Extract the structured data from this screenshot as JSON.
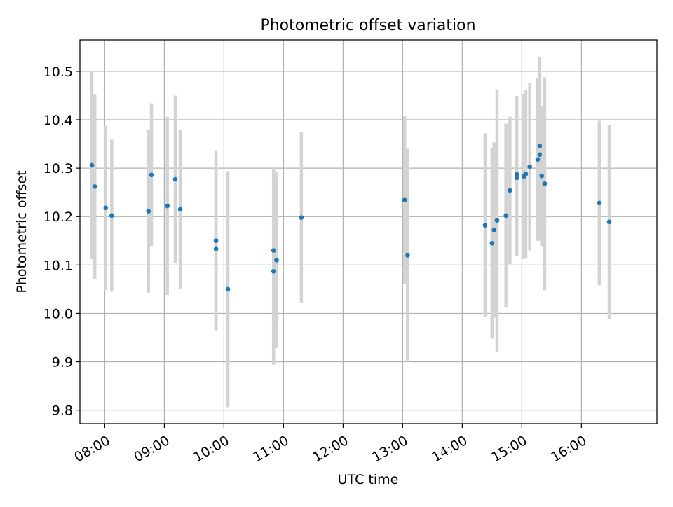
{
  "chart_data": {
    "type": "scatter",
    "title": "Photometric offset variation",
    "xlabel": "UTC time",
    "ylabel": "Photometric offset",
    "x_unit": "UTC",
    "xlim": [
      "07:35",
      "17:16"
    ],
    "ylim": [
      9.772,
      10.565
    ],
    "x_ticks": [
      "08:00",
      "09:00",
      "10:00",
      "11:00",
      "12:00",
      "13:00",
      "14:00",
      "15:00",
      "16:00"
    ],
    "y_ticks": [
      9.8,
      9.9,
      10.0,
      10.1,
      10.2,
      10.3,
      10.4,
      10.5
    ],
    "y_tick_labels": [
      "9.8",
      "9.9",
      "10.0",
      "10.1",
      "10.2",
      "10.3",
      "10.4",
      "10.5"
    ],
    "grid": true,
    "colors": {
      "point": "#1f77b4",
      "errorbar": "#d3d3d3",
      "grid": "#b0b0b0"
    },
    "series": [
      {
        "points": [
          {
            "x": "07:47",
            "y": 10.306,
            "err": 0.194
          },
          {
            "x": "07:50",
            "y": 10.262,
            "err": 0.191
          },
          {
            "x": "08:01",
            "y": 10.218,
            "err": 0.17
          },
          {
            "x": "08:07",
            "y": 10.202,
            "err": 0.157
          },
          {
            "x": "08:44",
            "y": 10.211,
            "err": 0.168
          },
          {
            "x": "08:47",
            "y": 10.286,
            "err": 0.148
          },
          {
            "x": "09:03",
            "y": 10.222,
            "err": 0.184
          },
          {
            "x": "09:11",
            "y": 10.277,
            "err": 0.173
          },
          {
            "x": "09:16",
            "y": 10.215,
            "err": 0.165
          },
          {
            "x": "09:52",
            "y": 10.15,
            "err": 0.187
          },
          {
            "x": "09:52",
            "y": 10.133,
            "err": 0.16
          },
          {
            "x": "10:04",
            "y": 10.05,
            "err": 0.244
          },
          {
            "x": "10:50",
            "y": 10.13,
            "err": 0.173
          },
          {
            "x": "10:50",
            "y": 10.087,
            "err": 0.193
          },
          {
            "x": "10:53",
            "y": 10.11,
            "err": 0.182
          },
          {
            "x": "11:18",
            "y": 10.198,
            "err": 0.177
          },
          {
            "x": "13:02",
            "y": 10.234,
            "err": 0.174
          },
          {
            "x": "13:05",
            "y": 10.12,
            "err": 0.22
          },
          {
            "x": "14:23",
            "y": 10.182,
            "err": 0.19
          },
          {
            "x": "14:30",
            "y": 10.145,
            "err": 0.197
          },
          {
            "x": "14:32",
            "y": 10.172,
            "err": 0.181
          },
          {
            "x": "14:35",
            "y": 10.192,
            "err": 0.271
          },
          {
            "x": "14:44",
            "y": 10.202,
            "err": 0.19
          },
          {
            "x": "14:48",
            "y": 10.254,
            "err": 0.152
          },
          {
            "x": "14:55",
            "y": 10.28,
            "err": 0.162
          },
          {
            "x": "14:55",
            "y": 10.287,
            "err": 0.162
          },
          {
            "x": "15:02",
            "y": 10.283,
            "err": 0.171
          },
          {
            "x": "15:04",
            "y": 10.288,
            "err": 0.173
          },
          {
            "x": "15:08",
            "y": 10.303,
            "err": 0.173
          },
          {
            "x": "15:16",
            "y": 10.318,
            "err": 0.168
          },
          {
            "x": "15:18",
            "y": 10.328,
            "err": 0.178
          },
          {
            "x": "15:18",
            "y": 10.346,
            "err": 0.183
          },
          {
            "x": "15:20",
            "y": 10.284,
            "err": 0.145
          },
          {
            "x": "15:23",
            "y": 10.268,
            "err": 0.22
          },
          {
            "x": "16:18",
            "y": 10.228,
            "err": 0.17
          },
          {
            "x": "16:28",
            "y": 10.189,
            "err": 0.2
          }
        ]
      }
    ]
  }
}
